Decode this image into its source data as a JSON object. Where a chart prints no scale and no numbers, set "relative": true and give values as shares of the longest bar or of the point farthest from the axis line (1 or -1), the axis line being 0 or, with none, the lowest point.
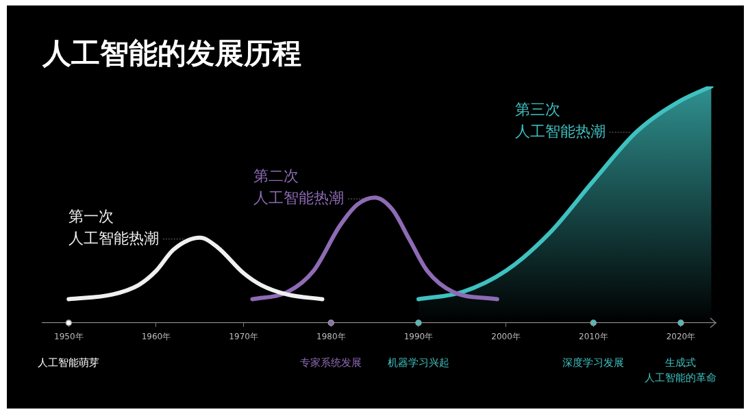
{
  "chart_data": {
    "type": "line",
    "title": "人工智能的发展历程",
    "relative": true,
    "legend": false,
    "grid": false,
    "marker": "none",
    "line_style": "solid",
    "xlim": [
      1947,
      2024
    ],
    "xticks": [
      {
        "value": 1950,
        "label": "1950年"
      },
      {
        "value": 1960,
        "label": "1960年"
      },
      {
        "value": 1970,
        "label": "1970年"
      },
      {
        "value": 1980,
        "label": "1980年"
      },
      {
        "value": 1990,
        "label": "1990年"
      },
      {
        "value": 2000,
        "label": "2000年"
      },
      {
        "value": 2010,
        "label": "2010年"
      },
      {
        "value": 2020,
        "label": "2020年"
      }
    ],
    "series": [
      {
        "name": "第一次人工智能热潮",
        "color": "#f0f0f0",
        "x": [
          1950,
          1955,
          1958,
          1960,
          1962,
          1965,
          1967,
          1970,
          1972,
          1975,
          1979
        ],
        "values": [
          0.1,
          0.12,
          0.16,
          0.22,
          0.31,
          0.36,
          0.32,
          0.21,
          0.16,
          0.12,
          0.1
        ]
      },
      {
        "name": "第二次人工智能热潮",
        "color": "#8e6bb5",
        "x": [
          1971,
          1975,
          1978,
          1981,
          1983,
          1985,
          1987,
          1989,
          1991,
          1994,
          1999
        ],
        "values": [
          0.1,
          0.13,
          0.22,
          0.41,
          0.5,
          0.53,
          0.48,
          0.35,
          0.22,
          0.13,
          0.1
        ]
      },
      {
        "name": "第三次人工智能热潮",
        "color": "#3fc1c0",
        "type": "area",
        "x": [
          1990,
          1995,
          2000,
          2005,
          2010,
          2015,
          2020,
          2023.5
        ],
        "values": [
          0.1,
          0.13,
          0.22,
          0.38,
          0.6,
          0.81,
          0.94,
          1.0
        ]
      },
      {
        "type": "scatter",
        "marker": "circle",
        "color": "#999999",
        "colors": [
          "#ffffff",
          "#8e6bb5",
          "#3fc1c0",
          "#3fc1c0",
          "#3fc1c0"
        ],
        "x": [
          1950,
          1980,
          1990,
          2010,
          2020
        ],
        "values": [
          0,
          0,
          0,
          0,
          0
        ]
      }
    ],
    "annotations": [
      "人工智能萌芽",
      "专家系统发展",
      "机器学习兴起",
      "深度学习发展",
      "生成式人工智能的革命"
    ]
  }
}
